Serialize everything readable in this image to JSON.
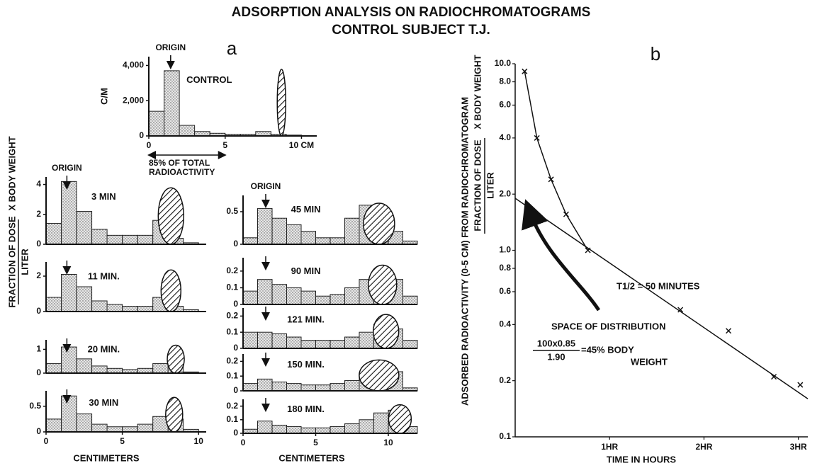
{
  "title": [
    "ADSORPTION ANALYSIS ON RADIOCHROMATOGRAMS",
    "CONTROL SUBJECT T.J."
  ],
  "panel_labels": [
    "a",
    "b"
  ],
  "y_label_a": {
    "numerator": "FRACTION OF DOSE",
    "denominator": "LITER",
    "suffix": "X BODY WEIGHT"
  },
  "x_label_a": [
    "CENTIMETERS",
    "CENTIMETERS"
  ],
  "chart_data": [
    {
      "type": "histogram",
      "label": "CONTROL",
      "origin": "ORIGIN",
      "ylabel": "C/M",
      "note": [
        "85% OF TOTAL",
        "RADIOACTIVITY"
      ],
      "bins": [
        0,
        1,
        2,
        3,
        4,
        5,
        6,
        7,
        8,
        9,
        10
      ],
      "values": [
        1400,
        3700,
        600,
        250,
        150,
        100,
        100,
        250,
        100,
        50
      ],
      "xlim": [
        0,
        11
      ],
      "ylim": [
        0,
        4500
      ],
      "xticks": [
        0,
        5,
        {
          "value": 10,
          "label": "10 CM"
        }
      ],
      "yticks": [
        0,
        {
          "value": 2000,
          "label": "2,000"
        },
        {
          "value": 4000,
          "label": "4,000"
        }
      ],
      "color": "#d4d4d4"
    },
    {
      "type": "histogram",
      "label": "3 MIN",
      "origin": "ORIGIN",
      "bins": [
        0,
        1,
        2,
        3,
        4,
        5,
        6,
        7,
        8,
        9,
        10
      ],
      "values": [
        1.4,
        4.2,
        2.2,
        1.0,
        0.6,
        0.6,
        0.6,
        1.6,
        0.4,
        0.1
      ],
      "xlim": [
        0,
        10.5
      ],
      "ylim": [
        0,
        4.5
      ],
      "yticks": [
        0,
        2,
        4
      ],
      "color": "#d4d4d4"
    },
    {
      "type": "histogram",
      "label": "11 MIN.",
      "bins": [
        0,
        1,
        2,
        3,
        4,
        5,
        6,
        7,
        8,
        9,
        10
      ],
      "values": [
        0.8,
        2.1,
        1.4,
        0.6,
        0.4,
        0.3,
        0.3,
        0.8,
        0.3,
        0.1
      ],
      "xlim": [
        0,
        10.5
      ],
      "ylim": [
        0,
        2.8
      ],
      "yticks": [
        0,
        2
      ],
      "color": "#d4d4d4"
    },
    {
      "type": "histogram",
      "label": "20 MIN.",
      "bins": [
        0,
        1,
        2,
        3,
        4,
        5,
        6,
        7,
        8,
        9,
        10
      ],
      "values": [
        0.4,
        1.1,
        0.6,
        0.3,
        0.2,
        0.15,
        0.2,
        0.4,
        0.3,
        0.05
      ],
      "xlim": [
        0,
        10.5
      ],
      "ylim": [
        0,
        1.4
      ],
      "yticks": [
        0,
        1
      ],
      "color": "#d4d4d4"
    },
    {
      "type": "histogram",
      "label": "30 MIN",
      "bins": [
        0,
        1,
        2,
        3,
        4,
        5,
        6,
        7,
        8,
        9,
        10
      ],
      "values": [
        0.25,
        0.7,
        0.35,
        0.15,
        0.1,
        0.1,
        0.15,
        0.3,
        0.25,
        0.05
      ],
      "xlim": [
        0,
        10.5
      ],
      "ylim": [
        0,
        0.8
      ],
      "yticks": [
        0,
        0.5
      ],
      "xticks": [
        0,
        5,
        10
      ],
      "color": "#d4d4d4"
    },
    {
      "type": "histogram",
      "label": "45 MIN",
      "origin": "ORIGIN",
      "bins": [
        0,
        1,
        2,
        3,
        4,
        5,
        6,
        7,
        8,
        9,
        10,
        11,
        12
      ],
      "values": [
        0.1,
        0.55,
        0.4,
        0.3,
        0.2,
        0.1,
        0.1,
        0.4,
        0.6,
        0.5,
        0.2,
        0.05
      ],
      "xlim": [
        0,
        12
      ],
      "ylim": [
        0,
        0.75
      ],
      "yticks": [
        0,
        0.5
      ],
      "color": "#d4d4d4"
    },
    {
      "type": "histogram",
      "label": "90 MIN",
      "bins": [
        0,
        1,
        2,
        3,
        4,
        5,
        6,
        7,
        8,
        9,
        10,
        11,
        12
      ],
      "values": [
        0.08,
        0.15,
        0.12,
        0.1,
        0.08,
        0.05,
        0.06,
        0.1,
        0.15,
        0.2,
        0.15,
        0.05
      ],
      "xlim": [
        0,
        12
      ],
      "ylim": [
        0,
        0.28
      ],
      "yticks": [
        0,
        0.1,
        0.2
      ],
      "color": "#d4d4d4"
    },
    {
      "type": "histogram",
      "label": "121 MIN.",
      "bins": [
        0,
        1,
        2,
        3,
        4,
        5,
        6,
        7,
        8,
        9,
        10,
        11,
        12
      ],
      "values": [
        0.1,
        0.1,
        0.09,
        0.07,
        0.05,
        0.05,
        0.05,
        0.07,
        0.1,
        0.15,
        0.12,
        0.05
      ],
      "xlim": [
        0,
        12
      ],
      "ylim": [
        0,
        0.25
      ],
      "yticks": [
        0,
        0.1,
        0.2
      ],
      "color": "#d4d4d4"
    },
    {
      "type": "histogram",
      "label": "150 MIN.",
      "bins": [
        0,
        1,
        2,
        3,
        4,
        5,
        6,
        7,
        8,
        9,
        10,
        11,
        12
      ],
      "values": [
        0.05,
        0.08,
        0.06,
        0.05,
        0.04,
        0.04,
        0.05,
        0.07,
        0.1,
        0.15,
        0.13,
        0.02
      ],
      "xlim": [
        0,
        12
      ],
      "ylim": [
        0,
        0.25
      ],
      "yticks": [
        0,
        0.1,
        0.2
      ],
      "color": "#d4d4d4"
    },
    {
      "type": "histogram",
      "label": "180 MIN.",
      "bins": [
        0,
        1,
        2,
        3,
        4,
        5,
        6,
        7,
        8,
        9,
        10,
        11,
        12
      ],
      "values": [
        0.03,
        0.09,
        0.06,
        0.05,
        0.04,
        0.04,
        0.05,
        0.07,
        0.1,
        0.15,
        0.17,
        0.05
      ],
      "xlim": [
        0,
        12
      ],
      "ylim": [
        0,
        0.25
      ],
      "yticks": [
        0,
        0.1,
        0.2
      ],
      "xticks": [
        0,
        5,
        10
      ],
      "color": "#d4d4d4"
    },
    {
      "type": "scatter",
      "log_y": true,
      "xlabel": "TIME IN HOURS",
      "ylabel": {
        "line1": "ADSORBED RADIOACTIVITY (0-5 CM) FROM RADIOCHROMATOGRAM",
        "numerator": "FRACTION OF DOSE",
        "denominator": "LITER",
        "suffix": "X BODY WEIGHT"
      },
      "x": [
        0.1,
        0.23,
        0.38,
        0.54,
        0.77,
        1.75,
        2.26,
        2.74,
        3.02
      ],
      "values": [
        9.1,
        4.0,
        2.4,
        1.56,
        1.0,
        0.48,
        0.37,
        0.21,
        0.19
      ],
      "curve": {
        "x": [
          0.1,
          0.23,
          0.38,
          0.54,
          0.77
        ],
        "values": [
          9.1,
          4.0,
          2.4,
          1.56,
          1.0
        ]
      },
      "fit": {
        "x": [
          0,
          3.1
        ],
        "values": [
          1.9,
          0.16
        ]
      },
      "xlim": [
        0,
        3.1
      ],
      "ylim": [
        0.1,
        10
      ],
      "xticks": [
        {
          "value": 1,
          "label": "1HR"
        },
        {
          "value": 2,
          "label": "2HR"
        },
        {
          "value": 3,
          "label": "3HR"
        }
      ],
      "yticks": [
        0.1,
        0.2,
        0.4,
        0.6,
        0.8,
        {
          "value": 1,
          "label": "1.0"
        },
        {
          "value": 2,
          "label": "2.0"
        },
        {
          "value": 4,
          "label": "4.0"
        },
        {
          "value": 6,
          "label": "6.0"
        },
        {
          "value": 8,
          "label": "8.0"
        },
        {
          "value": 10,
          "label": "10.0"
        }
      ],
      "annotations": {
        "half_life": "T1/2 = 50 MINUTES",
        "space_title": "SPACE OF DISTRIBUTION",
        "formula_numerator": "100x0.85",
        "formula_denominator": "1.90",
        "formula_result": [
          "=45% BODY",
          "WEIGHT"
        ]
      },
      "color": "#111"
    }
  ]
}
